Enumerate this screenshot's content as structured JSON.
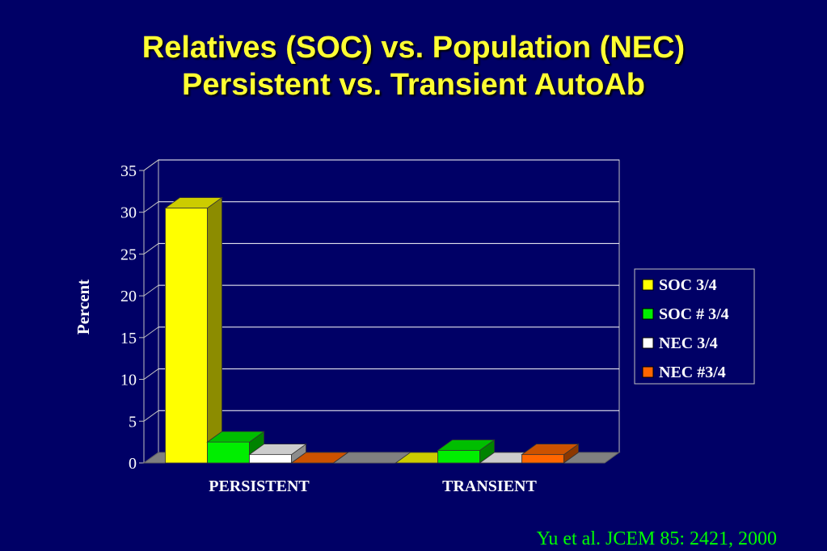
{
  "slide": {
    "title_line1": "Relatives (SOC) vs. Population (NEC)",
    "title_line2": "Persistent vs. Transient AutoAb",
    "citation": "Yu et al. JCEM 85: 2421, 2000"
  },
  "chart_data": {
    "type": "bar",
    "title": "",
    "xlabel": "",
    "ylabel": "Percent",
    "ylim": [
      0,
      35
    ],
    "yticks": [
      "0",
      "5",
      "10",
      "15",
      "20",
      "25",
      "30",
      "35"
    ],
    "categories": [
      "PERSISTENT",
      "TRANSIENT"
    ],
    "series": [
      {
        "name": "SOC 3/4",
        "values": [
          30.5,
          0
        ],
        "color": "#ffff00"
      },
      {
        "name": "SOC # 3/4",
        "values": [
          2.5,
          1.5
        ],
        "color": "#00ee00"
      },
      {
        "name": "NEC 3/4",
        "values": [
          1,
          0
        ],
        "color": "#ffffff"
      },
      {
        "name": "NEC #3/4",
        "values": [
          0,
          1
        ],
        "color": "#ff6600"
      }
    ],
    "grid": true,
    "legend_position": "right",
    "style": "3d",
    "background_color": "#000066",
    "wall_color": "#000066",
    "floor_color": "#808080"
  }
}
